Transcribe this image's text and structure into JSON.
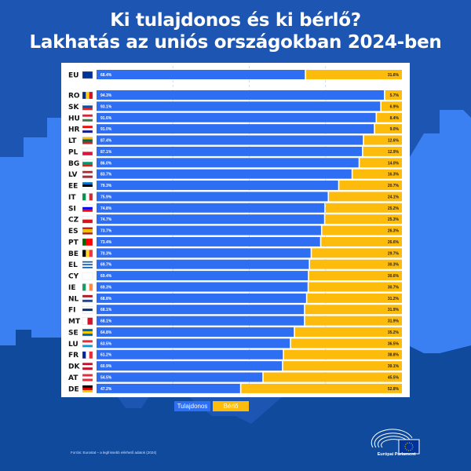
{
  "title_line1": "Ki tulajdonos és ki bérlő?",
  "title_line2": "Lakhatás az uniós országokban 2024-ben",
  "source": "Forrás: Eurostat – a legfrissebb elérhető adatok (2024)",
  "logo_text": "Európai Parlament",
  "colors": {
    "owner": "#2d6ef2",
    "tenant": "#fdbc0b",
    "background": "#1d55b3",
    "skyline": "#3a80f2",
    "ground": "#0f4a9c"
  },
  "chart_data": {
    "type": "bar",
    "orientation": "horizontal",
    "stacked": true,
    "xlim": [
      0,
      100
    ],
    "grid": "dashed vertical at 25, 50, 75",
    "legend_placement": "bottom",
    "categories": [
      "EU",
      "RO",
      "SK",
      "HU",
      "HR",
      "LT",
      "PL",
      "BG",
      "LV",
      "EE",
      "IT",
      "SI",
      "CZ",
      "ES",
      "PT",
      "BE",
      "EL",
      "CY",
      "IE",
      "NL",
      "FI",
      "MT",
      "SE",
      "LU",
      "FR",
      "DK",
      "AT",
      "DE"
    ],
    "series": [
      {
        "name": "Tulajdonos",
        "values": [
          68.4,
          94.3,
          93.1,
          91.6,
          91.0,
          87.4,
          87.1,
          86.0,
          83.7,
          79.3,
          75.9,
          74.8,
          74.7,
          73.7,
          73.4,
          70.3,
          69.7,
          69.4,
          69.3,
          68.8,
          68.1,
          68.1,
          64.8,
          63.5,
          61.2,
          60.9,
          54.5,
          47.2
        ],
        "labels": [
          "68.4%",
          "94.3%",
          "93.1%",
          "91.6%",
          "91.0%",
          "87.4%",
          "87.1%",
          "86.0%",
          "83.7%",
          "79.3%",
          "75.9%",
          "74.8%",
          "74.7%",
          "73.7%",
          "73.4%",
          "70.3%",
          "69.7%",
          "69.4%",
          "69.3%",
          "68.8%",
          "68.1%",
          "68.1%",
          "64.8%",
          "63.5%",
          "61.2%",
          "60.9%",
          "54.5%",
          "47.2%"
        ]
      },
      {
        "name": "Bérlő",
        "values": [
          31.6,
          5.7,
          6.9,
          8.4,
          9.0,
          12.6,
          12.9,
          14.0,
          16.3,
          20.7,
          24.1,
          25.2,
          25.3,
          26.3,
          26.6,
          29.7,
          30.3,
          30.6,
          30.7,
          31.2,
          31.9,
          31.9,
          35.2,
          36.5,
          38.8,
          39.1,
          45.5,
          52.8
        ],
        "labels": [
          "31.6%",
          "5.7%",
          "6.9%",
          "8.4%",
          "9.0%",
          "12.6%",
          "12.9%",
          "14.0%",
          "16.3%",
          "20.7%",
          "24.1%",
          "25.2%",
          "25.3%",
          "26.3%",
          "26.6%",
          "29.7%",
          "30.3%",
          "30.6%",
          "30.7%",
          "31.2%",
          "31.9%",
          "31.9%",
          "35.2%",
          "36.5%",
          "38.8%",
          "39.1%",
          "45.5%",
          "52.8%"
        ]
      }
    ],
    "flags": {
      "EU": [
        "h",
        "#003399"
      ],
      "RO": [
        "v",
        "#002b7f",
        "#fcd116",
        "#ce1126"
      ],
      "SK": [
        "h",
        "#fff",
        "#0b4ea2",
        "#ee1c25"
      ],
      "HU": [
        "h",
        "#ce2939",
        "#fff",
        "#477050"
      ],
      "HR": [
        "h",
        "#ff0000",
        "#fff",
        "#171796"
      ],
      "LT": [
        "h",
        "#fdb913",
        "#006a44",
        "#c1272d"
      ],
      "PL": [
        "h",
        "#fff",
        "#dc143c"
      ],
      "BG": [
        "h",
        "#fff",
        "#00966e",
        "#d62612"
      ],
      "LV": [
        "h",
        "#9e3039",
        "#fff",
        "#9e3039"
      ],
      "EE": [
        "h",
        "#0072ce",
        "#000",
        "#fff"
      ],
      "IT": [
        "v",
        "#009246",
        "#fff",
        "#ce2b37"
      ],
      "SI": [
        "h",
        "#fff",
        "#0000ff",
        "#ff0000"
      ],
      "CZ": [
        "h",
        "#fff",
        "#d7141a"
      ],
      "ES": [
        "h",
        "#aa151b",
        "#f1bf00",
        "#f1bf00",
        "#aa151b"
      ],
      "PT": [
        "v",
        "#006600",
        "#ff0000",
        "#ff0000"
      ],
      "BE": [
        "v",
        "#000",
        "#fdda24",
        "#ef3340"
      ],
      "EL": [
        "h",
        "#0d5eaf",
        "#fff",
        "#0d5eaf",
        "#fff",
        "#0d5eaf"
      ],
      "CY": [
        "h",
        "#fff"
      ],
      "IE": [
        "v",
        "#169b62",
        "#fff",
        "#ff883e"
      ],
      "NL": [
        "h",
        "#ae1c28",
        "#fff",
        "#21468b"
      ],
      "FI": [
        "h",
        "#fff",
        "#002f6c",
        "#fff"
      ],
      "MT": [
        "v",
        "#fff",
        "#cf142b"
      ],
      "SE": [
        "h",
        "#006aa7",
        "#fecc00",
        "#006aa7"
      ],
      "LU": [
        "h",
        "#ed2939",
        "#fff",
        "#00a1de"
      ],
      "FR": [
        "v",
        "#002395",
        "#fff",
        "#ed2939"
      ],
      "DK": [
        "h",
        "#c8102e",
        "#fff",
        "#c8102e"
      ],
      "AT": [
        "h",
        "#ed2939",
        "#fff",
        "#ed2939"
      ],
      "DE": [
        "h",
        "#000",
        "#dd0000",
        "#ffce00"
      ]
    }
  }
}
